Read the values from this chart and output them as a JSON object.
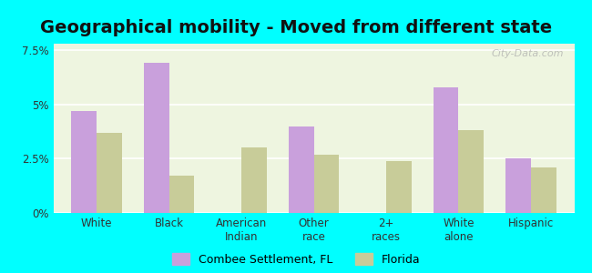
{
  "title": "Geographical mobility - Moved from different state",
  "categories": [
    "White",
    "Black",
    "American\nIndian",
    "Other\nrace",
    "2+\nraces",
    "White\nalone",
    "Hispanic"
  ],
  "combee_values": [
    4.7,
    6.9,
    0.0,
    4.0,
    0.0,
    5.8,
    2.5
  ],
  "florida_values": [
    3.7,
    1.7,
    3.0,
    2.7,
    2.4,
    3.8,
    2.1
  ],
  "combee_color": "#c9a0dc",
  "florida_color": "#c8cc99",
  "background_color": "#eef5e0",
  "outer_background": "#00ffff",
  "ylim": [
    0,
    7.8
  ],
  "yticks": [
    0,
    2.5,
    5.0,
    7.5
  ],
  "ytick_labels": [
    "0%",
    "2.5%",
    "5%",
    "7.5%"
  ],
  "legend_label_combee": "Combee Settlement, FL",
  "legend_label_florida": "Florida",
  "bar_width": 0.35,
  "title_fontsize": 14,
  "watermark": "City-Data.com"
}
